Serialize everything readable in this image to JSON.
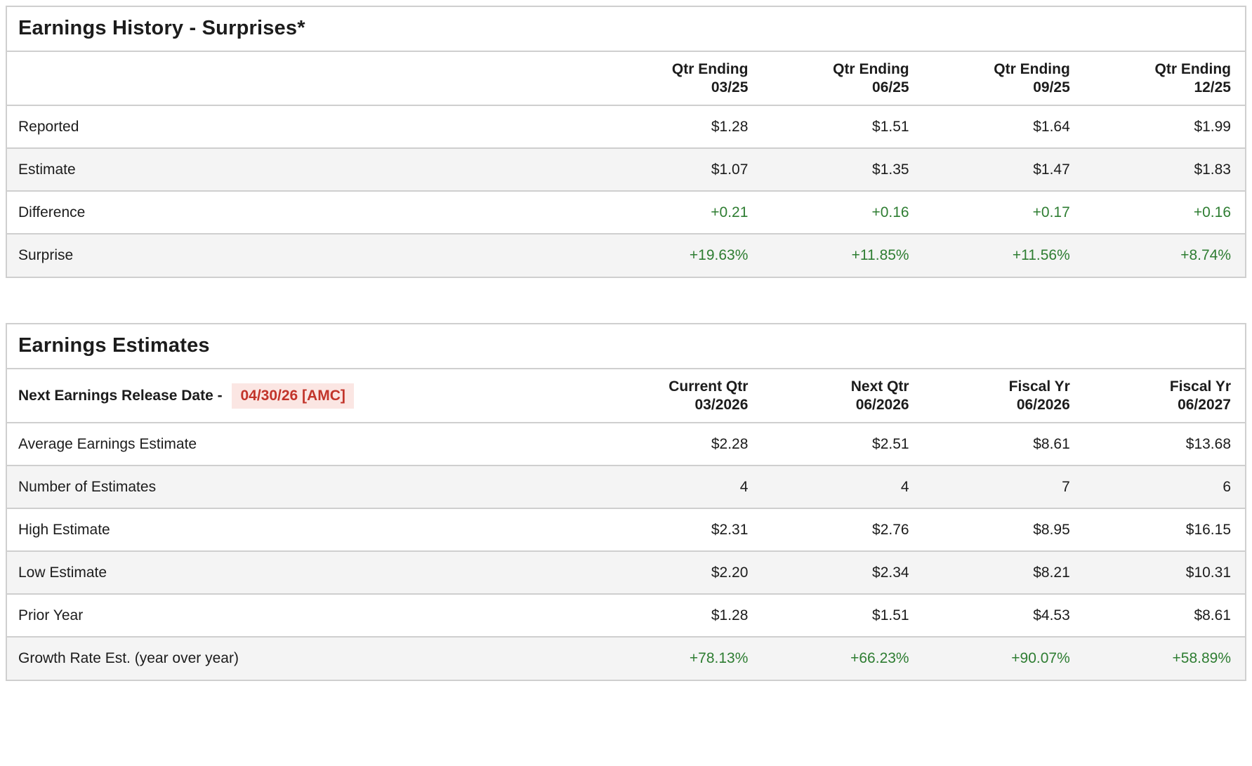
{
  "page": {
    "colors": {
      "positive": "#2e7d32",
      "alert_text": "#c2342a",
      "alert_bg": "#fbe6e3",
      "row_alt_bg": "#f4f4f4",
      "border": "#cfcfcf",
      "text": "#1c1c1c"
    }
  },
  "surprises_table": {
    "title": "Earnings History - Surprises*",
    "columns": [
      {
        "line1": "Qtr Ending",
        "line2": "03/25"
      },
      {
        "line1": "Qtr Ending",
        "line2": "06/25"
      },
      {
        "line1": "Qtr Ending",
        "line2": "09/25"
      },
      {
        "line1": "Qtr Ending",
        "line2": "12/25"
      }
    ],
    "rows": [
      {
        "label": "Reported",
        "values": [
          "$1.28",
          "$1.51",
          "$1.64",
          "$1.99"
        ]
      },
      {
        "label": "Estimate",
        "values": [
          "$1.07",
          "$1.35",
          "$1.47",
          "$1.83"
        ]
      },
      {
        "label": "Difference",
        "values": [
          "+0.21",
          "+0.16",
          "+0.17",
          "+0.16"
        ]
      },
      {
        "label": "Surprise",
        "values": [
          "+19.63%",
          "+11.85%",
          "+11.56%",
          "+8.74%"
        ]
      }
    ]
  },
  "estimates_table": {
    "title": "Earnings Estimates",
    "release_date_label": "Next Earnings Release Date -",
    "release_date_value": "04/30/26 [AMC]",
    "columns": [
      {
        "line1": "Current Qtr",
        "line2": "03/2026"
      },
      {
        "line1": "Next Qtr",
        "line2": "06/2026"
      },
      {
        "line1": "Fiscal Yr",
        "line2": "06/2026"
      },
      {
        "line1": "Fiscal Yr",
        "line2": "06/2027"
      }
    ],
    "rows": [
      {
        "label": "Average Earnings Estimate",
        "values": [
          "$2.28",
          "$2.51",
          "$8.61",
          "$13.68"
        ]
      },
      {
        "label": "Number of Estimates",
        "values": [
          "4",
          "4",
          "7",
          "6"
        ]
      },
      {
        "label": "High Estimate",
        "values": [
          "$2.31",
          "$2.76",
          "$8.95",
          "$16.15"
        ]
      },
      {
        "label": "Low Estimate",
        "values": [
          "$2.20",
          "$2.34",
          "$8.21",
          "$10.31"
        ]
      },
      {
        "label": "Prior Year",
        "values": [
          "$1.28",
          "$1.51",
          "$4.53",
          "$8.61"
        ]
      },
      {
        "label": "Growth Rate Est. (year over year)",
        "values": [
          "+78.13%",
          "+66.23%",
          "+90.07%",
          "+58.89%"
        ]
      }
    ]
  }
}
